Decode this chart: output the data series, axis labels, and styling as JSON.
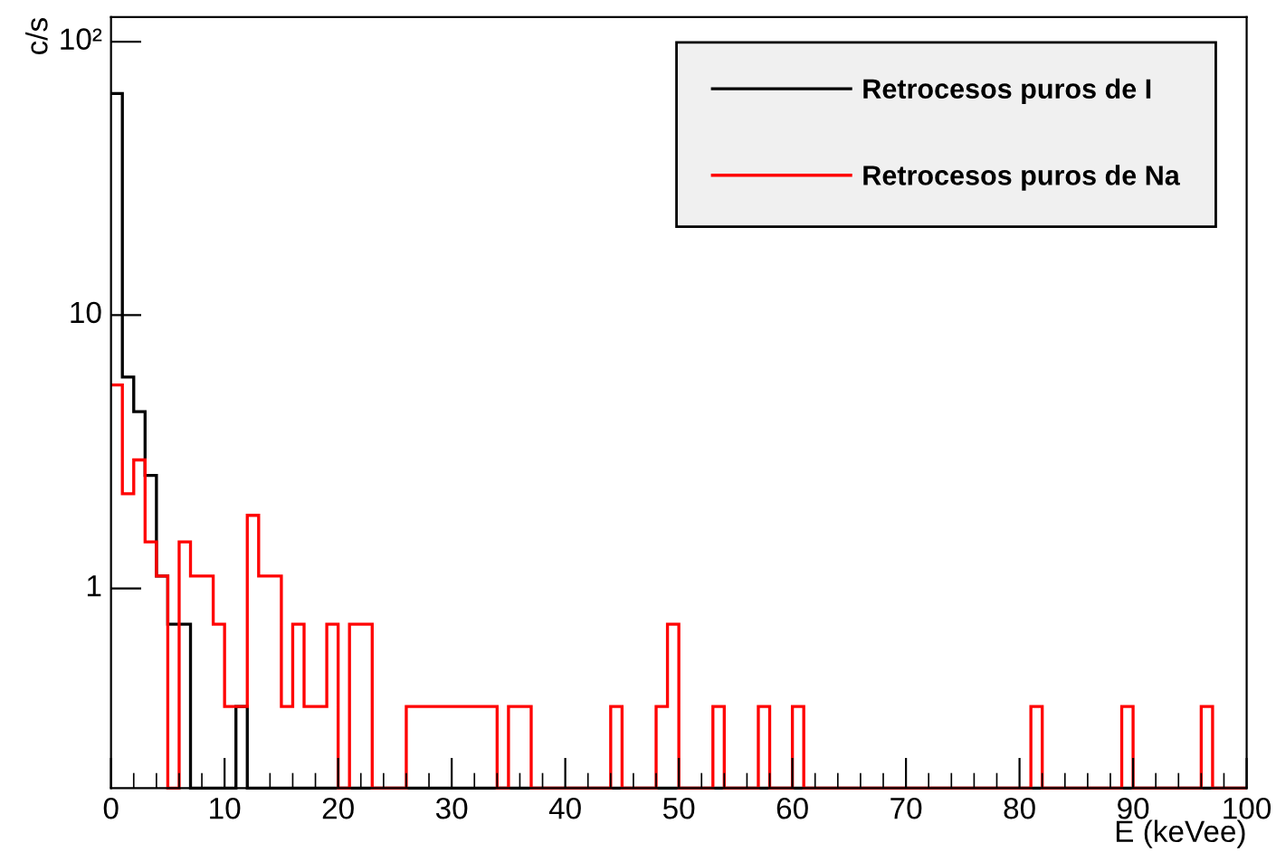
{
  "chart_data": {
    "type": "histogram",
    "xlabel": "E (keVee)",
    "ylabel": "c/s",
    "log": "y",
    "bins": [
      0,
      1,
      2,
      3,
      4,
      5,
      6,
      7,
      8,
      9,
      10,
      11,
      12,
      13,
      14,
      15,
      16,
      17,
      18,
      19,
      20,
      21,
      22,
      23,
      24,
      25,
      26,
      27,
      28,
      29,
      30,
      31,
      32,
      33,
      34,
      35,
      36,
      37,
      38,
      39,
      40,
      41,
      42,
      43,
      44,
      45,
      46,
      47,
      48,
      49,
      50,
      51,
      52,
      53,
      54,
      55,
      56,
      57,
      58,
      59,
      60,
      61,
      62,
      63,
      64,
      65,
      66,
      67,
      68,
      69,
      70,
      71,
      72,
      73,
      74,
      75,
      76,
      77,
      78,
      79,
      80,
      81,
      82,
      83,
      84,
      85,
      86,
      87,
      88,
      89,
      90,
      91,
      92,
      93,
      94,
      95,
      96,
      97,
      98,
      99,
      100
    ],
    "series": [
      {
        "name": "Retrocesos puros de I",
        "color": "#000000",
        "values": [
          64.6,
          5.93,
          4.43,
          2.59,
          1.11,
          0.74,
          0.74,
          null,
          null,
          null,
          null,
          0.37,
          null,
          null,
          null,
          null,
          null,
          null,
          null,
          null,
          null,
          null,
          null,
          null,
          null,
          null,
          null,
          null,
          null,
          null,
          null,
          null,
          null,
          null,
          null,
          null,
          null,
          null,
          null,
          null,
          null,
          null,
          null,
          null,
          null,
          null,
          null,
          null,
          null,
          null,
          null,
          null,
          null,
          null,
          null,
          null,
          null,
          null,
          null,
          null,
          null,
          null,
          null,
          null,
          null,
          null,
          null,
          null,
          null,
          null,
          null,
          null,
          null,
          null,
          null,
          null,
          null,
          null,
          null,
          null,
          null,
          null,
          null,
          null,
          null,
          null,
          null,
          null,
          null,
          null,
          null,
          null,
          null,
          null,
          null,
          null,
          null,
          null,
          null,
          null
        ]
      },
      {
        "name": "Retrocesos puros de Na",
        "color": "#ff0000",
        "values": [
          5.55,
          2.22,
          2.95,
          1.48,
          1.11,
          null,
          1.48,
          1.11,
          1.11,
          0.74,
          0.37,
          0.37,
          1.85,
          1.11,
          1.11,
          0.37,
          0.74,
          0.37,
          0.37,
          0.74,
          null,
          0.74,
          0.74,
          null,
          null,
          null,
          0.37,
          0.37,
          0.37,
          0.37,
          0.37,
          0.37,
          0.37,
          0.37,
          null,
          0.37,
          0.37,
          null,
          null,
          null,
          null,
          null,
          null,
          null,
          0.37,
          null,
          null,
          null,
          0.37,
          0.74,
          null,
          null,
          null,
          0.37,
          null,
          null,
          null,
          0.37,
          null,
          null,
          0.37,
          null,
          null,
          null,
          null,
          null,
          null,
          null,
          null,
          null,
          null,
          null,
          null,
          null,
          null,
          null,
          null,
          null,
          null,
          null,
          null,
          0.37,
          null,
          null,
          null,
          null,
          null,
          null,
          null,
          0.37,
          null,
          null,
          null,
          null,
          null,
          null,
          0.37,
          null,
          null,
          null
        ]
      }
    ],
    "xlim": [
      0,
      100
    ],
    "xticks": [
      0,
      10,
      20,
      30,
      40,
      50,
      60,
      70,
      80,
      90,
      100
    ],
    "ylim": [
      0.186,
      123
    ],
    "yticks": [
      1,
      10,
      {
        "value": 100,
        "label": "10²"
      }
    ],
    "grid": false,
    "legend": "top right"
  }
}
